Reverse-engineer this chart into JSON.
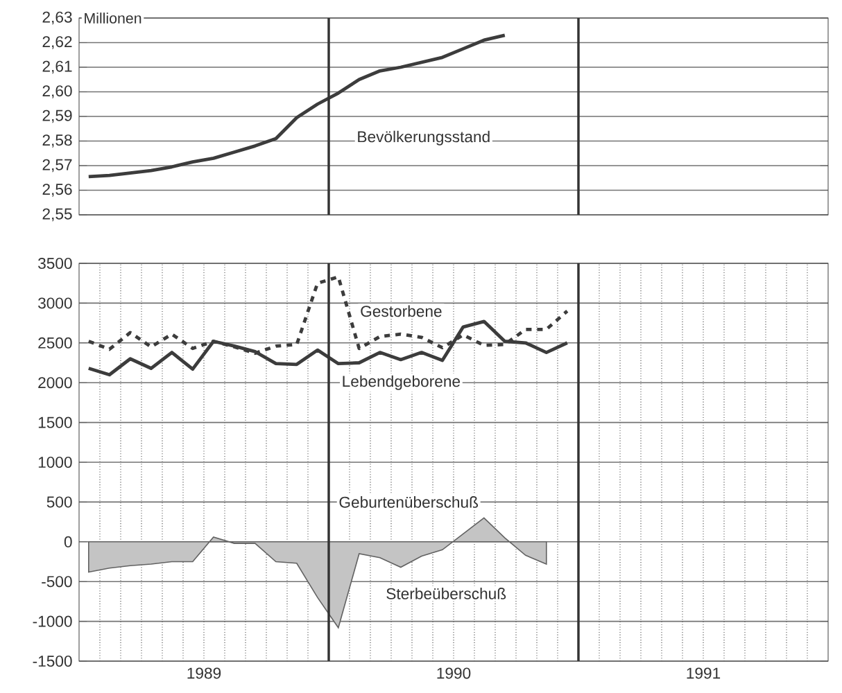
{
  "chart_data": [
    {
      "type": "line",
      "ylabel": "Millionen",
      "xlim": [
        "1989-01-01",
        "1992-01-01"
      ],
      "ylim": [
        2.55,
        2.63
      ],
      "yticks": [
        {
          "value": 2.55,
          "label": "2,55"
        },
        {
          "value": 2.56,
          "label": "2,56"
        },
        {
          "value": 2.57,
          "label": "2,57"
        },
        {
          "value": 2.58,
          "label": "2,58"
        },
        {
          "value": 2.59,
          "label": "2,59"
        },
        {
          "value": 2.6,
          "label": "2,60"
        },
        {
          "value": 2.61,
          "label": "2,61"
        },
        {
          "value": 2.62,
          "label": "2,62"
        },
        {
          "value": 2.63,
          "label": "2,63"
        }
      ],
      "tick_labels": "y",
      "grid": true,
      "ref_lines": [
        {
          "axis": "x",
          "value": "1990-01-01",
          "color": "#333333"
        },
        {
          "axis": "x",
          "value": "1991-01-01",
          "color": "#333333"
        }
      ],
      "series": [
        {
          "name": "Bevölkerungsstand",
          "color": "#3c3c3c",
          "x": [
            "1989-01-15",
            "1989-02-15",
            "1989-03-15",
            "1989-04-15",
            "1989-05-15",
            "1989-06-15",
            "1989-07-15",
            "1989-08-15",
            "1989-09-15",
            "1989-10-15",
            "1989-11-15",
            "1989-12-15",
            "1990-01-15",
            "1990-02-15",
            "1990-03-15",
            "1990-04-15",
            "1990-05-15",
            "1990-06-15",
            "1990-07-15",
            "1990-08-15",
            "1990-09-15"
          ],
          "values": [
            2.5655,
            2.566,
            2.567,
            2.568,
            2.5695,
            2.5715,
            2.573,
            2.5755,
            2.578,
            2.581,
            2.5895,
            2.595,
            2.5995,
            2.605,
            2.6085,
            2.61,
            2.612,
            2.614,
            2.6175,
            2.621,
            2.623
          ]
        }
      ]
    },
    {
      "type": "line",
      "xlim": [
        "1989-01-01",
        "1992-01-01"
      ],
      "ylim": [
        -1500,
        3500
      ],
      "xticks": [
        {
          "value": "1989-07-01",
          "label": "1989"
        },
        {
          "value": "1990-07-01",
          "label": "1990"
        },
        {
          "value": "1991-07-01",
          "label": "1991"
        }
      ],
      "yticks": [
        -1500,
        -1000,
        -500,
        0,
        500,
        1000,
        1500,
        2000,
        2500,
        3000,
        3500
      ],
      "grid": true,
      "ref_lines": [
        {
          "axis": "x",
          "value": "1990-01-01",
          "color": "#333333"
        },
        {
          "axis": "x",
          "value": "1991-01-01",
          "color": "#333333"
        }
      ],
      "annotations": [
        "Geburtenüberschuß",
        "Sterbeüberschuß"
      ],
      "x": [
        "1989-01-15",
        "1989-02-15",
        "1989-03-15",
        "1989-04-15",
        "1989-05-15",
        "1989-06-15",
        "1989-07-15",
        "1989-08-15",
        "1989-09-15",
        "1989-10-15",
        "1989-11-15",
        "1989-12-15",
        "1990-01-15",
        "1990-02-15",
        "1990-03-15",
        "1990-04-15",
        "1990-05-15",
        "1990-06-15",
        "1990-07-15",
        "1990-08-15",
        "1990-09-15",
        "1990-10-15",
        "1990-11-15",
        "1990-12-15"
      ],
      "series": [
        {
          "name": "Gestorbene",
          "color": "#3c3c3c",
          "line_style": "dashed",
          "values": [
            2520,
            2420,
            2630,
            2450,
            2610,
            2430,
            2520,
            2450,
            2370,
            2460,
            2480,
            3250,
            3330,
            2430,
            2580,
            2610,
            2570,
            2440,
            2600,
            2470,
            2480,
            2670,
            2670,
            2900
          ]
        },
        {
          "name": "Lebendgeborene",
          "color": "#3c3c3c",
          "line_style": "solid",
          "values": [
            2180,
            2100,
            2300,
            2180,
            2380,
            2170,
            2520,
            2460,
            2390,
            2240,
            2230,
            2410,
            2240,
            2250,
            2380,
            2290,
            2380,
            2280,
            2700,
            2770,
            2520,
            2500,
            2380,
            2500
          ]
        },
        {
          "type": "area",
          "color": "#c4c4c4",
          "values": [
            -380,
            -330,
            -300,
            -280,
            -250,
            -250,
            60,
            -20,
            -20,
            -250,
            -270,
            -700,
            -1080,
            -150,
            -200,
            -320,
            -180,
            -100,
            100,
            300,
            50,
            -170,
            -280,
            null
          ]
        }
      ]
    }
  ]
}
